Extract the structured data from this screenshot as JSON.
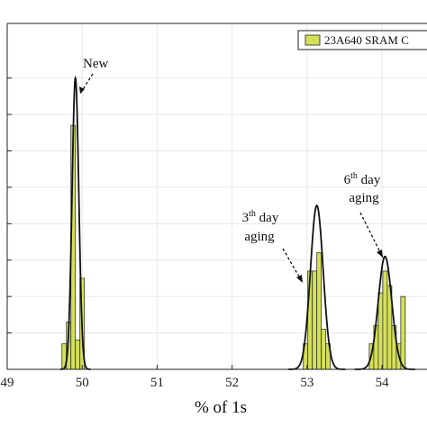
{
  "chart_data": {
    "type": "bar",
    "xlabel": "% of 1s",
    "ylabel": "",
    "xlim": [
      49,
      54.6
    ],
    "ylim": [
      0,
      95
    ],
    "x_ticks": [
      49,
      50,
      51,
      52,
      53,
      54
    ],
    "x_tick_labels": [
      "49",
      "50",
      "51",
      "52",
      "53",
      "54"
    ],
    "y_ticks": [
      10,
      20,
      30,
      40,
      50,
      60,
      70,
      80
    ],
    "grid": true,
    "legend": {
      "position": "top-right",
      "label": "23A640 SRAM C"
    },
    "bar_color": "#d4e157",
    "bar_width": 0.06,
    "series": [
      {
        "histogram": [
          {
            "x": 49.76,
            "y": 7
          },
          {
            "x": 49.82,
            "y": 13
          },
          {
            "x": 49.88,
            "y": 67
          },
          {
            "x": 49.94,
            "y": 8
          },
          {
            "x": 50.0,
            "y": 25
          }
        ],
        "fit": {
          "mu": 49.91,
          "sigma": 0.045,
          "peak": 80
        }
      },
      {
        "histogram": [
          {
            "x": 52.98,
            "y": 7
          },
          {
            "x": 53.04,
            "y": 27
          },
          {
            "x": 53.1,
            "y": 27
          },
          {
            "x": 53.16,
            "y": 32
          },
          {
            "x": 53.22,
            "y": 11
          },
          {
            "x": 53.28,
            "y": 7
          }
        ],
        "fit": {
          "mu": 53.13,
          "sigma": 0.085,
          "peak": 45
        }
      },
      {
        "histogram": [
          {
            "x": 53.86,
            "y": 7
          },
          {
            "x": 53.92,
            "y": 12
          },
          {
            "x": 53.98,
            "y": 21
          },
          {
            "x": 54.04,
            "y": 27
          },
          {
            "x": 54.1,
            "y": 23
          },
          {
            "x": 54.16,
            "y": 12
          },
          {
            "x": 54.22,
            "y": 7
          },
          {
            "x": 54.28,
            "y": 20
          }
        ],
        "fit": {
          "mu": 54.04,
          "sigma": 0.09,
          "peak": 31
        }
      }
    ],
    "annotations": [
      {
        "lines": [
          "New"
        ]
      },
      {
        "lines": [
          "3th day",
          "aging"
        ]
      },
      {
        "lines": [
          "6th day",
          "aging"
        ]
      }
    ]
  }
}
